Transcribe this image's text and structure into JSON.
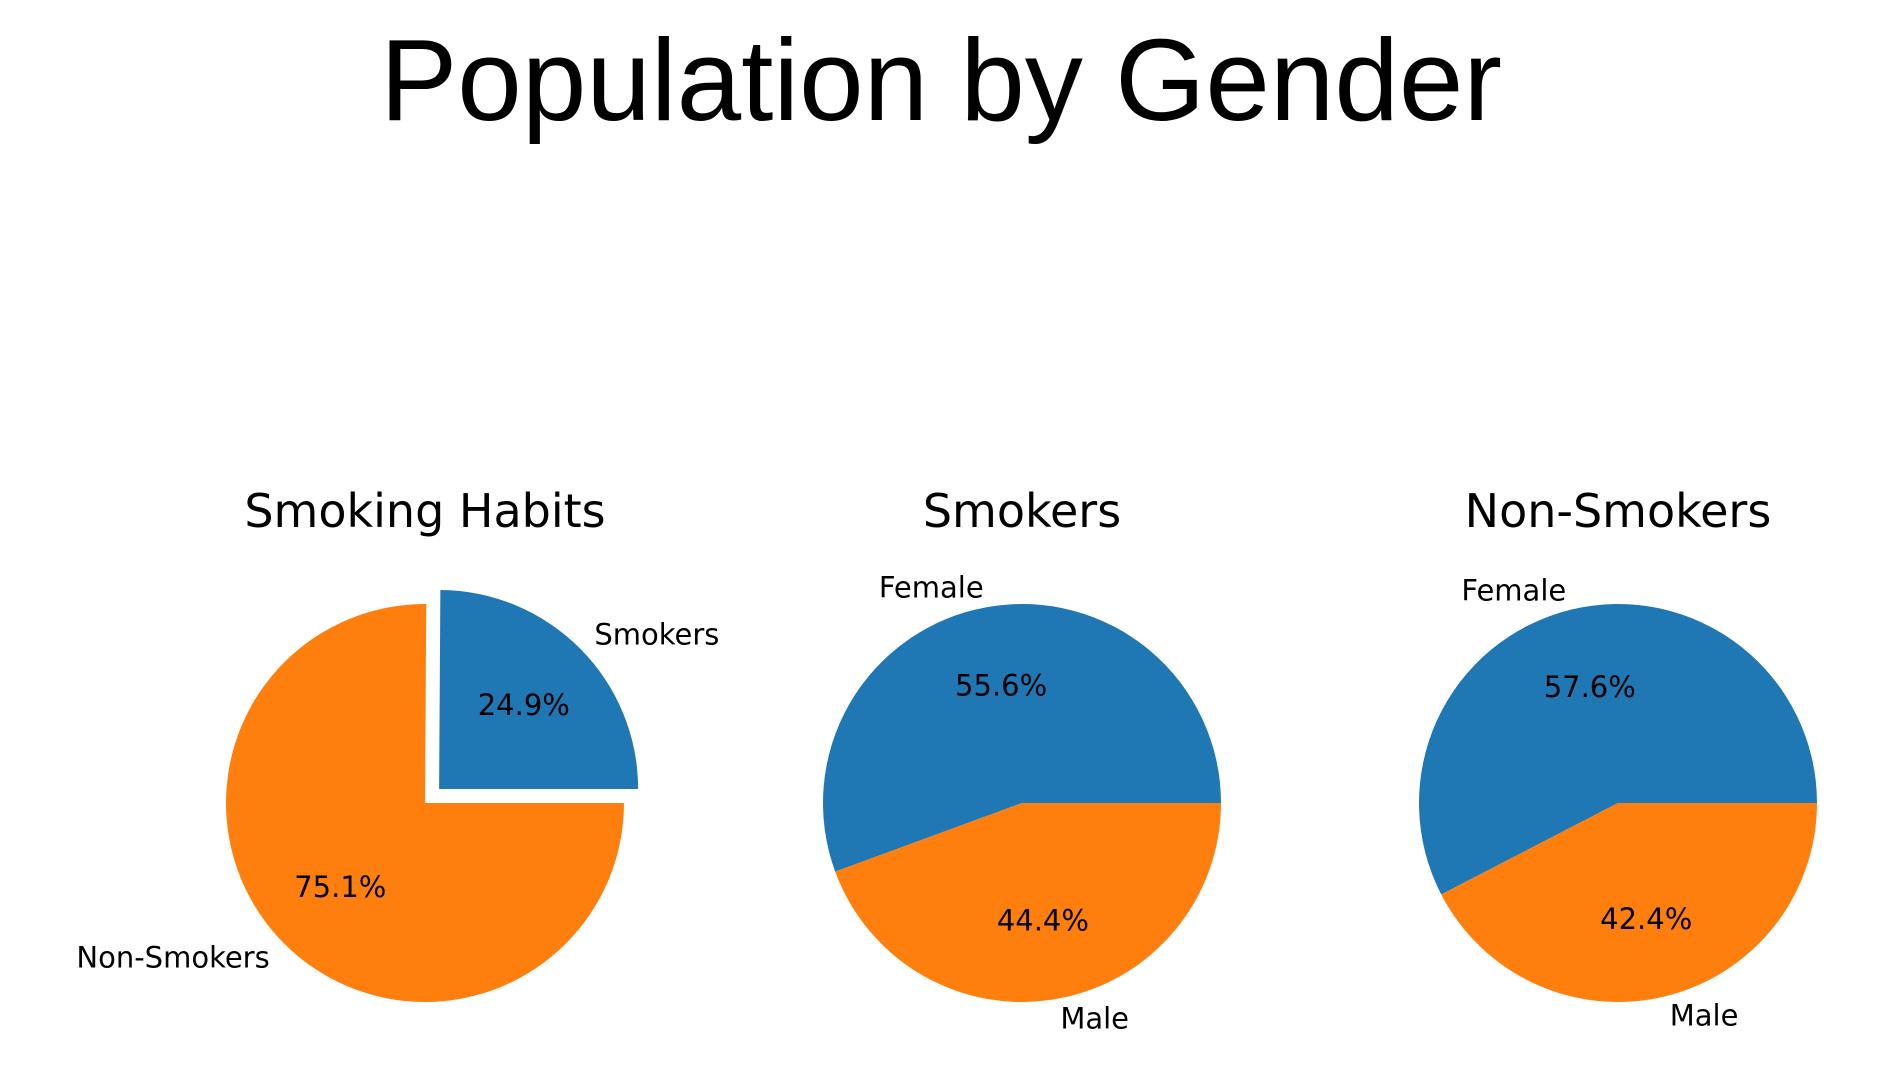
{
  "page": {
    "title": "Population by Gender"
  },
  "colors": {
    "blue": "#1f77b4",
    "orange": "#ff7f0e"
  },
  "chart_data": [
    {
      "type": "pie",
      "title": "Smoking Habits",
      "labels": [
        "Smokers",
        "Non-Smokers"
      ],
      "values": [
        24.9,
        75.1
      ],
      "percent_labels": [
        "24.9%",
        "75.1%"
      ],
      "colors": [
        "#1f77b4",
        "#ff7f0e"
      ],
      "exploded": [
        "Smokers"
      ]
    },
    {
      "type": "pie",
      "title": "Smokers",
      "labels": [
        "Female",
        "Male"
      ],
      "values": [
        55.6,
        44.4
      ],
      "percent_labels": [
        "55.6%",
        "44.4%"
      ],
      "colors": [
        "#1f77b4",
        "#ff7f0e"
      ],
      "exploded": []
    },
    {
      "type": "pie",
      "title": "Non-Smokers",
      "labels": [
        "Female",
        "Male"
      ],
      "values": [
        57.6,
        42.4
      ],
      "percent_labels": [
        "57.6%",
        "42.4%"
      ],
      "colors": [
        "#1f77b4",
        "#ff7f0e"
      ],
      "exploded": []
    }
  ]
}
